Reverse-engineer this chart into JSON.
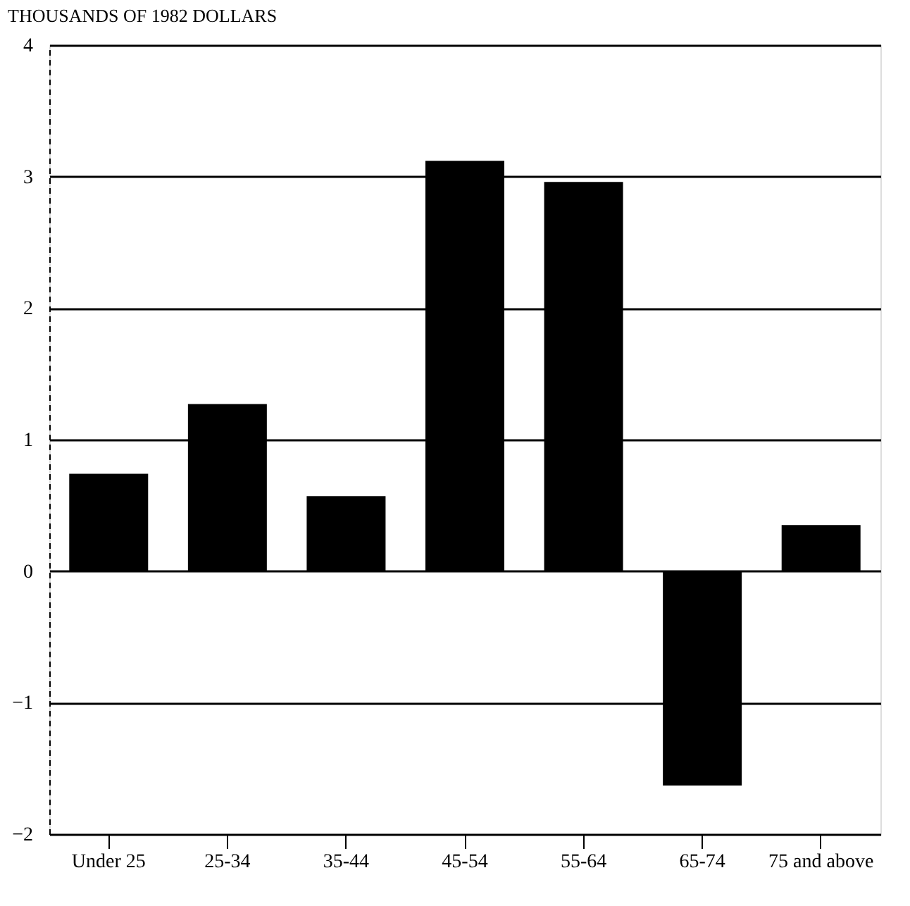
{
  "chart_data": {
    "type": "bar",
    "ylabel": "THOUSANDS OF 1982 DOLLARS",
    "categories": [
      "Under 25",
      "25-34",
      "35-44",
      "45-54",
      "55-64",
      "65-74",
      "75 and above"
    ],
    "values": [
      0.74,
      1.27,
      0.57,
      3.12,
      2.96,
      -1.63,
      0.35
    ],
    "color": "#000000",
    "ylim": [
      -2,
      4
    ],
    "yticks": [
      -2,
      -1,
      0,
      1,
      2,
      3,
      4
    ],
    "grid": "y"
  }
}
